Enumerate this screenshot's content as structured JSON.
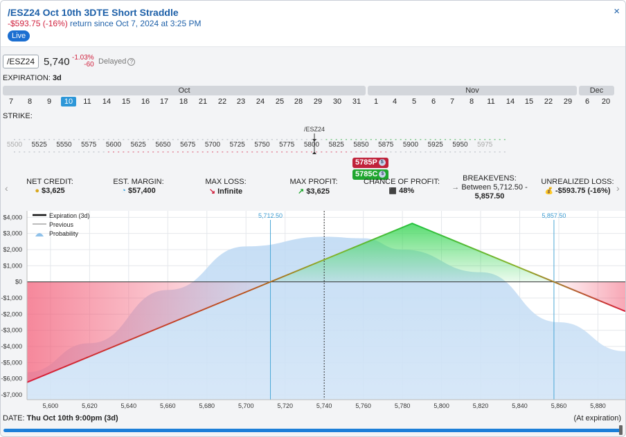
{
  "header": {
    "title": "/ESZ24 Oct 10th 3DTE Short Straddle",
    "pnl": "-$593.75 (-16%)",
    "pnl_suffix": " return since Oct 7, 2024 at 3:25 PM",
    "live": "Live",
    "close_glyph": "×"
  },
  "quote": {
    "symbol": "/ESZ24",
    "price": "5,740",
    "change_pct": "-1.03%",
    "change_abs": "-60",
    "delayed": "Delayed",
    "help_glyph": "?"
  },
  "expiration": {
    "label": "EXPIRATION:",
    "value": "3d",
    "months": [
      {
        "name": "Oct"
      },
      {
        "name": "Nov"
      },
      {
        "name": "Dec"
      }
    ],
    "days": [
      "7",
      "8",
      "9",
      "10",
      "11",
      "14",
      "15",
      "16",
      "17",
      "18",
      "21",
      "22",
      "23",
      "24",
      "25",
      "28",
      "29",
      "30",
      "31",
      "1",
      "4",
      "5",
      "6",
      "7",
      "8",
      "11",
      "14",
      "15",
      "22",
      "29",
      "6",
      "20"
    ],
    "selected_day": "10"
  },
  "strike": {
    "label": "STRIKE:",
    "underlying_label": "/ESZ24",
    "ticks": [
      "5500",
      "5525",
      "5550",
      "5575",
      "5600",
      "5625",
      "5650",
      "5675",
      "5700",
      "5725",
      "5750",
      "5775",
      "5800",
      "5825",
      "5850",
      "5875",
      "5900",
      "5925",
      "5950",
      "5975"
    ],
    "positions": [
      {
        "label": "5785P",
        "color": "#c0223a"
      },
      {
        "label": "5785C",
        "color": "#1fa62e"
      }
    ],
    "dollar_glyph": "$"
  },
  "stats": [
    {
      "label": "NET CREDIT:",
      "icon": "coins-icon",
      "glyph": "●",
      "value": "$3,625"
    },
    {
      "label": "EST. MARGIN:",
      "icon": "pie-icon",
      "glyph": "◔",
      "value": "$57,400"
    },
    {
      "label": "MAX LOSS:",
      "icon": "arrow-down-right-icon",
      "glyph": "↘",
      "value": "Infinite"
    },
    {
      "label": "MAX PROFIT:",
      "icon": "arrow-up-right-icon",
      "glyph": "↗",
      "value": "$3,625"
    },
    {
      "label": "CHANCE OF PROFIT:",
      "icon": "dice-icon",
      "glyph": "⬛",
      "value": "48%"
    },
    {
      "label": "BREAKEVENS:",
      "icon": "arrow-right-icon",
      "glyph": "→",
      "value": "Between 5,712.50 -",
      "value2": "5,857.50"
    },
    {
      "label": "UNREALIZED LOSS:",
      "icon": "money-bag-icon",
      "glyph": "💰",
      "value": "-$593.75 (-16%)"
    }
  ],
  "nav": {
    "prev": "‹",
    "next": "›"
  },
  "chart_data": {
    "type": "line",
    "title": "",
    "xlabel": "",
    "ylabel": "",
    "xlim": [
      5588,
      5894
    ],
    "ylim": [
      -7300,
      4400
    ],
    "x_ticks": [
      5600,
      5620,
      5640,
      5660,
      5680,
      5700,
      5720,
      5740,
      5760,
      5780,
      5800,
      5820,
      5840,
      5860,
      5880
    ],
    "x_tick_labels": [
      "5,600",
      "5,620",
      "5,640",
      "5,660",
      "5,680",
      "5,700",
      "5,720",
      "5,740",
      "5,760",
      "5,780",
      "5,800",
      "5,820",
      "5,840",
      "5,860",
      "5,880"
    ],
    "y_ticks": [
      4000,
      3000,
      2000,
      1000,
      0,
      -1000,
      -2000,
      -3000,
      -4000,
      -5000,
      -6000,
      -7000
    ],
    "y_tick_labels": [
      "$4,000",
      "$3,000",
      "$2,000",
      "$1,000",
      "$0",
      "-$1,000",
      "-$2,000",
      "-$3,000",
      "-$4,000",
      "-$5,000",
      "-$6,000",
      "-$7,000"
    ],
    "legend": [
      "Expiration (3d)",
      "Previous",
      "Probability"
    ],
    "legend_position": "top-left",
    "series": [
      {
        "name": "Expiration (3d)",
        "x": [
          5588,
          5785,
          5894
        ],
        "y": [
          -6225,
          3625,
          -1825
        ]
      }
    ],
    "probability": {
      "x": [
        5588,
        5620,
        5660,
        5700,
        5740,
        5760,
        5780,
        5820,
        5860,
        5894
      ],
      "y": [
        -5600,
        -3800,
        -500,
        2200,
        2800,
        2700,
        2000,
        600,
        -2500,
        -4300
      ]
    },
    "annotations": [
      {
        "x": 5712.5,
        "label": "5,712.50"
      },
      {
        "x": 5857.5,
        "label": "5,857.50"
      }
    ],
    "current_price": 5740,
    "grid": true
  },
  "footer": {
    "date_label": "DATE:",
    "date_value": "Thu Oct 10th 9:00pm (3d)",
    "at_expiration": "(At expiration)"
  }
}
